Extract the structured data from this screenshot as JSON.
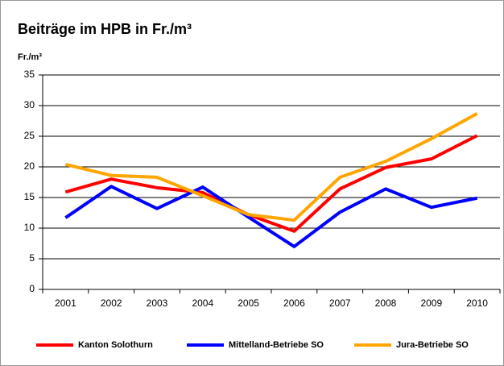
{
  "chart_data": {
    "type": "line",
    "title": "Beiträge im HPB in Fr./m³",
    "y_label": "Fr./m³",
    "categories": [
      "2001",
      "2002",
      "2003",
      "2004",
      "2005",
      "2006",
      "2007",
      "2008",
      "2009",
      "2010"
    ],
    "series": [
      {
        "name": "Kanton Solothurn",
        "color": "#ff0000",
        "values": [
          15.9,
          18.0,
          16.6,
          15.8,
          12.2,
          9.5,
          16.4,
          19.9,
          21.3,
          25.1
        ]
      },
      {
        "name": "Mittelland-Betriebe SO",
        "color": "#0000ff",
        "values": [
          11.7,
          16.8,
          13.2,
          16.7,
          11.8,
          7.0,
          12.6,
          16.4,
          13.4,
          14.9
        ]
      },
      {
        "name": "Jura-Betriebe SO",
        "color": "#ffa500",
        "values": [
          20.4,
          18.6,
          18.3,
          15.3,
          12.2,
          11.3,
          18.3,
          20.9,
          24.6,
          28.7
        ]
      }
    ],
    "ylim": [
      0,
      35
    ],
    "yticks": [
      0,
      5,
      10,
      15,
      20,
      25,
      30,
      35
    ],
    "grid": true,
    "legend": "bottom"
  }
}
